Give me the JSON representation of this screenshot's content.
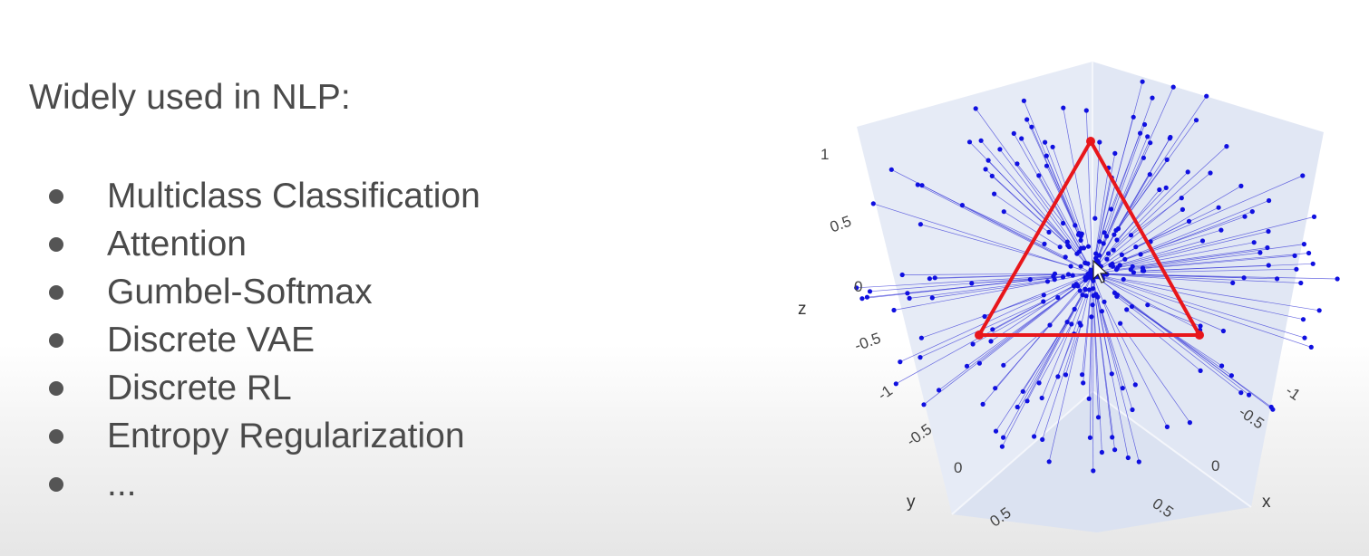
{
  "slide": {
    "heading": "Widely used in NLP:",
    "bullets": [
      "Multiclass Classification",
      "Attention",
      "Gumbel-Softmax",
      "Discrete VAE",
      "Discrete RL",
      "Entropy Regularization",
      "..."
    ]
  },
  "chart_data": {
    "type": "scatter",
    "axes": {
      "x": {
        "title": "x",
        "ticks": [
          "-1",
          "-0.5",
          "0",
          "0.5"
        ]
      },
      "y": {
        "title": "y",
        "ticks": [
          "-1",
          "-0.5",
          "0",
          "0.5"
        ]
      },
      "z": {
        "title": "z",
        "ticks": [
          "1",
          "0.5",
          "0",
          "-0.5"
        ]
      }
    },
    "colors": {
      "points": "#1010e0",
      "projection_lines": "#3a3ad8",
      "simplex": "#e8161b",
      "pane": "#e3e9f6"
    }
  }
}
